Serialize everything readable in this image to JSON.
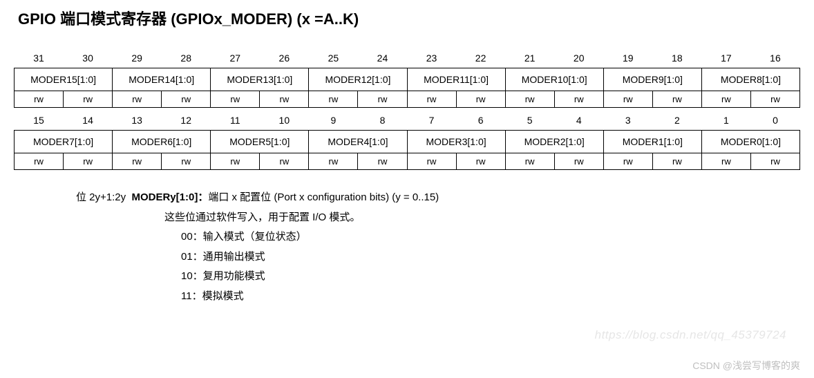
{
  "title": "GPIO 端口模式寄存器 (GPIOx_MODER) (x =A..K)",
  "upper": {
    "bits": [
      "31",
      "30",
      "29",
      "28",
      "27",
      "26",
      "25",
      "24",
      "23",
      "22",
      "21",
      "20",
      "19",
      "18",
      "17",
      "16"
    ],
    "fields": [
      "MODER15[1:0]",
      "MODER14[1:0]",
      "MODER13[1:0]",
      "MODER12[1:0]",
      "MODER11[1:0]",
      "MODER10[1:0]",
      "MODER9[1:0]",
      "MODER8[1:0]"
    ],
    "rw": [
      "rw",
      "rw",
      "rw",
      "rw",
      "rw",
      "rw",
      "rw",
      "rw",
      "rw",
      "rw",
      "rw",
      "rw",
      "rw",
      "rw",
      "rw",
      "rw"
    ]
  },
  "lower": {
    "bits": [
      "15",
      "14",
      "13",
      "12",
      "11",
      "10",
      "9",
      "8",
      "7",
      "6",
      "5",
      "4",
      "3",
      "2",
      "1",
      "0"
    ],
    "fields": [
      "MODER7[1:0]",
      "MODER6[1:0]",
      "MODER5[1:0]",
      "MODER4[1:0]",
      "MODER3[1:0]",
      "MODER2[1:0]",
      "MODER1[1:0]",
      "MODER0[1:0]"
    ],
    "rw": [
      "rw",
      "rw",
      "rw",
      "rw",
      "rw",
      "rw",
      "rw",
      "rw",
      "rw",
      "rw",
      "rw",
      "rw",
      "rw",
      "rw",
      "rw",
      "rw"
    ]
  },
  "desc": {
    "bits_label": "位 2y+1:2y",
    "field_name": "MODERy[1:0]：",
    "field_text": "端口 x 配置位 (Port x configuration bits) (y = 0..15)",
    "sub": "这些位通过软件写入，用于配置 I/O 模式。",
    "opt00": "00：输入模式（复位状态）",
    "opt01": "01：通用输出模式",
    "opt10": "10：复用功能模式",
    "opt11": "11：模拟模式"
  },
  "watermark_url": "https://blog.csdn.net/qq_45379724",
  "watermark_author": "CSDN @浅尝写博客的爽"
}
